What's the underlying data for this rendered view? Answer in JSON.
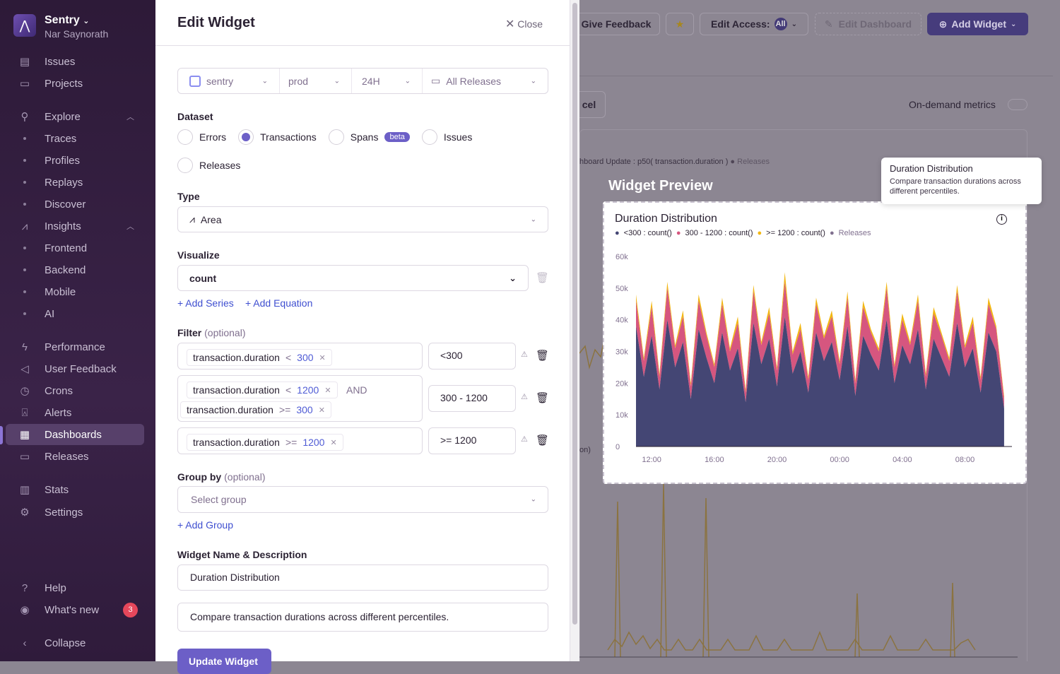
{
  "sidebar": {
    "org": "Sentry",
    "user": "Nar Saynorath",
    "items": [
      {
        "label": "Issues",
        "icon": "inbox-icon"
      },
      {
        "label": "Projects",
        "icon": "folder-code-icon"
      },
      {
        "label": "Explore",
        "icon": "search-icon"
      },
      {
        "label": "Traces"
      },
      {
        "label": "Profiles"
      },
      {
        "label": "Replays"
      },
      {
        "label": "Discover"
      },
      {
        "label": "Insights",
        "icon": "graph-icon"
      },
      {
        "label": "Frontend"
      },
      {
        "label": "Backend"
      },
      {
        "label": "Mobile"
      },
      {
        "label": "AI"
      },
      {
        "label": "Performance",
        "icon": "lightning-icon"
      },
      {
        "label": "User Feedback",
        "icon": "megaphone-icon"
      },
      {
        "label": "Crons",
        "icon": "clock-icon"
      },
      {
        "label": "Alerts",
        "icon": "siren-icon"
      },
      {
        "label": "Dashboards",
        "icon": "dashboard-icon"
      },
      {
        "label": "Releases",
        "icon": "package-icon"
      },
      {
        "label": "Stats",
        "icon": "bar-chart-icon"
      },
      {
        "label": "Settings",
        "icon": "gear-icon"
      }
    ],
    "help": "Help",
    "whats_new": "What's new",
    "whats_new_count": "3",
    "collapse": "Collapse",
    "active": "Dashboards"
  },
  "drawer": {
    "title": "Edit Widget",
    "close": "Close",
    "page_filters": {
      "project": "sentry",
      "env": "prod",
      "period": "24H",
      "releases": "All Releases"
    },
    "dataset": {
      "label": "Dataset",
      "options": [
        "Errors",
        "Transactions",
        "Spans",
        "Issues",
        "Releases"
      ],
      "selected": "Transactions",
      "beta": "beta"
    },
    "type": {
      "label": "Type",
      "value": "Area"
    },
    "visualize": {
      "label": "Visualize",
      "value": "count",
      "add_series": "+ Add Series",
      "add_equation": "+ Add Equation"
    },
    "filter": {
      "label": "Filter",
      "optional": "(optional)",
      "and": "AND",
      "rows": [
        {
          "tags": [
            {
              "key": "transaction.duration",
              "op": "<",
              "val": "300"
            }
          ],
          "legend": "<300"
        },
        {
          "tags": [
            {
              "key": "transaction.duration",
              "op": "<",
              "val": "1200"
            },
            {
              "key": "transaction.duration",
              "op": ">=",
              "val": "300"
            }
          ],
          "legend": "300 - 1200"
        },
        {
          "tags": [
            {
              "key": "transaction.duration",
              "op": ">=",
              "val": "1200"
            }
          ],
          "legend": ">= 1200"
        }
      ]
    },
    "group_by": {
      "label": "Group by",
      "optional": "(optional)",
      "placeholder": "Select group",
      "add": "+ Add Group"
    },
    "name_desc": {
      "label": "Widget Name & Description",
      "name": "Duration Distribution",
      "description": "Compare transaction durations across different percentiles."
    },
    "update_button": "Update Widget"
  },
  "dashboard": {
    "give_feedback": "Give Feedback",
    "edit_access": "Edit Access:",
    "edit_access_badge": "All",
    "edit_dashboard": "Edit Dashboard",
    "add_widget": "Add Widget",
    "cancel": "cel",
    "on_demand": "On-demand metrics",
    "bg_legend": "hboard Update : p50( transaction.duration )",
    "bg_releases": "Releases",
    "bg_frag": "on)",
    "widget_preview": "Widget Preview"
  },
  "tooltip": {
    "title": "Duration Distribution",
    "body": "Compare transaction durations across different percentiles."
  },
  "colors": {
    "lt300": "#444674",
    "mid": "#d6567f",
    "hi": "#f2b712",
    "releases": "#80708f",
    "accent": "#6c5fc7"
  },
  "chart_data": {
    "type": "area",
    "stacked": true,
    "title": "Duration Distribution",
    "ylim": [
      0,
      60000
    ],
    "yticks": [
      "0",
      "10k",
      "20k",
      "30k",
      "40k",
      "50k",
      "60k"
    ],
    "xticks": [
      "12:00",
      "16:00",
      "20:00",
      "00:00",
      "04:00",
      "08:00"
    ],
    "x": [
      "11:00",
      "11:30",
      "12:00",
      "12:30",
      "13:00",
      "13:30",
      "14:00",
      "14:30",
      "15:00",
      "15:30",
      "16:00",
      "16:30",
      "17:00",
      "17:30",
      "18:00",
      "18:30",
      "19:00",
      "19:30",
      "20:00",
      "20:30",
      "21:00",
      "21:30",
      "22:00",
      "22:30",
      "23:00",
      "23:30",
      "00:00",
      "00:30",
      "01:00",
      "01:30",
      "02:00",
      "02:30",
      "03:00",
      "03:30",
      "04:00",
      "04:30",
      "05:00",
      "05:30",
      "06:00",
      "06:30",
      "07:00",
      "07:30",
      "08:00",
      "08:30",
      "09:00",
      "09:30",
      "10:00",
      "10:30"
    ],
    "series": [
      {
        "name": "<300 : count()",
        "values": [
          38000,
          22000,
          35000,
          18000,
          40000,
          25000,
          33000,
          15000,
          37000,
          28000,
          20000,
          36000,
          24000,
          31000,
          14000,
          39000,
          26000,
          34000,
          19000,
          41000,
          23000,
          30000,
          17000,
          36000,
          27000,
          33000,
          21000,
          38000,
          16000,
          35000,
          29000,
          24000,
          40000,
          20000,
          32000,
          26000,
          37000,
          18000,
          34000,
          28000,
          22000,
          39000,
          25000,
          31000,
          17000,
          36000,
          30000,
          12000
        ]
      },
      {
        "name": "300 - 1200 : count()",
        "values": [
          8000,
          5000,
          9000,
          4000,
          10000,
          6000,
          8000,
          4000,
          9000,
          7000,
          5000,
          9000,
          6000,
          8000,
          3000,
          10000,
          6000,
          8000,
          5000,
          11000,
          6000,
          7000,
          4000,
          9000,
          7000,
          8000,
          5000,
          9000,
          4000,
          9000,
          7000,
          6000,
          10000,
          5000,
          8000,
          6000,
          9000,
          4000,
          8000,
          7000,
          5000,
          10000,
          6000,
          8000,
          4000,
          9000,
          7000,
          3000
        ]
      },
      {
        "name": ">= 1200 : count()",
        "values": [
          2000,
          1000,
          2000,
          1000,
          2000,
          1000,
          2000,
          1000,
          2000,
          1000,
          1000,
          2000,
          1000,
          2000,
          1000,
          2000,
          1000,
          2000,
          1000,
          3000,
          1000,
          2000,
          1000,
          2000,
          1000,
          2000,
          1000,
          2000,
          1000,
          2000,
          1000,
          1000,
          2000,
          1000,
          2000,
          1000,
          2000,
          1000,
          2000,
          1000,
          1000,
          2000,
          1000,
          2000,
          1000,
          2000,
          1000,
          1000
        ]
      }
    ],
    "legend_extra": "Releases",
    "legend": "top-left",
    "grid": false
  }
}
